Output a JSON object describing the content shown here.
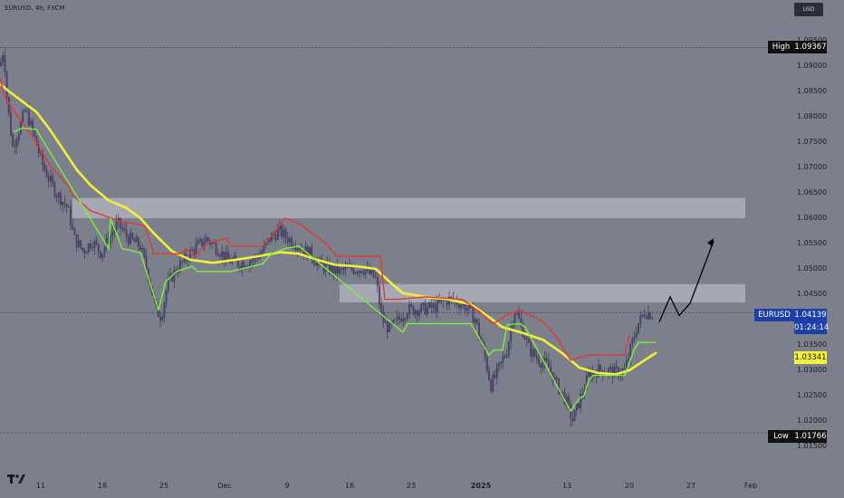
{
  "header": {
    "symbol": "EURUSD, 4h, FXCM",
    "currency": "USD"
  },
  "price_axis": {
    "ticks": [
      "1.09500",
      "1.09000",
      "1.08500",
      "1.08000",
      "1.07500",
      "1.07000",
      "1.06500",
      "1.06000",
      "1.05500",
      "1.05000",
      "1.04500",
      "1.04000",
      "1.03500",
      "1.03000",
      "1.02500",
      "1.02000",
      "1.01500"
    ]
  },
  "time_axis": {
    "ticks": [
      "11",
      "18",
      "25",
      "Dec",
      "9",
      "16",
      "23",
      "2025",
      "13",
      "20",
      "27",
      "Feb"
    ]
  },
  "tags": {
    "high": {
      "label": "High",
      "value": "1.09367"
    },
    "low": {
      "label": "Low",
      "value": "1.01766"
    },
    "current": {
      "label": "EURUSD",
      "value": "1.04139",
      "countdown": "01:24:14"
    },
    "ma": {
      "value": "1.03341"
    }
  },
  "zones": [
    {
      "name": "upper-resistance-zone",
      "from": 1.06,
      "to": 1.064
    },
    {
      "name": "lower-resistance-zone",
      "from": 1.0434,
      "to": 1.047
    }
  ],
  "colors": {
    "background": "#7c7f8c",
    "ma_line": "#f0f039",
    "red_line": "#e03a3a",
    "green_line": "#7ef03c",
    "current_tag": "#1e3fa8",
    "ma_tag": "#f5f23a"
  },
  "chart_data": {
    "type": "candlestick",
    "symbol": "EURUSD",
    "timeframe": "4h",
    "source": "FXCM",
    "ylim": [
      1.0125,
      1.098
    ],
    "high": 1.09367,
    "low": 1.01766,
    "last": 1.04139,
    "moving_average_last": 1.03341,
    "series": [
      {
        "name": "moving-average",
        "color": "#f0f039",
        "points": [
          [
            0,
            1.0865
          ],
          [
            10,
            1.085
          ],
          [
            25,
            1.083
          ],
          [
            40,
            1.081
          ],
          [
            55,
            1.0775
          ],
          [
            70,
            1.0735
          ],
          [
            85,
            1.0695
          ],
          [
            100,
            1.0665
          ],
          [
            120,
            1.0635
          ],
          [
            140,
            1.062
          ],
          [
            155,
            1.06
          ],
          [
            170,
            1.057
          ],
          [
            190,
            1.0535
          ],
          [
            210,
            1.0518
          ],
          [
            235,
            1.0512
          ],
          [
            260,
            1.0518
          ],
          [
            285,
            1.0525
          ],
          [
            310,
            1.0533
          ],
          [
            330,
            1.053
          ],
          [
            350,
            1.0518
          ],
          [
            370,
            1.0508
          ],
          [
            395,
            1.0505
          ],
          [
            415,
            1.05
          ],
          [
            430,
            1.0475
          ],
          [
            445,
            1.0452
          ],
          [
            470,
            1.0445
          ],
          [
            495,
            1.044
          ],
          [
            520,
            1.043
          ],
          [
            540,
            1.0405
          ],
          [
            555,
            1.0385
          ],
          [
            575,
            1.0375
          ],
          [
            600,
            1.036
          ],
          [
            620,
            1.0335
          ],
          [
            640,
            1.0305
          ],
          [
            660,
            1.0295
          ],
          [
            680,
            1.0292
          ],
          [
            695,
            1.03
          ],
          [
            710,
            1.0318
          ],
          [
            725,
            1.0335
          ]
        ]
      },
      {
        "name": "red-stop-line",
        "color": "#e03a3a",
        "points": [
          [
            0,
            1.0878
          ],
          [
            5,
            1.084
          ],
          [
            20,
            1.08
          ],
          [
            40,
            1.075
          ],
          [
            55,
            1.0705
          ],
          [
            75,
            1.0665
          ],
          [
            80,
            1.0645
          ],
          [
            100,
            1.0615
          ],
          [
            130,
            1.0595
          ],
          [
            160,
            1.0585
          ],
          [
            170,
            1.053
          ],
          [
            200,
            1.053
          ],
          [
            205,
            1.054
          ],
          [
            215,
            1.0525
          ],
          [
            230,
            1.0552
          ],
          [
            250,
            1.056
          ],
          [
            255,
            1.0545
          ],
          [
            290,
            1.0545
          ],
          [
            300,
            1.0565
          ],
          [
            315,
            1.06
          ],
          [
            330,
            1.059
          ],
          [
            345,
            1.057
          ],
          [
            360,
            1.055
          ],
          [
            372,
            1.0525
          ],
          [
            420,
            1.0525
          ],
          [
            425,
            1.044
          ],
          [
            440,
            1.044
          ],
          [
            470,
            1.0445
          ],
          [
            510,
            1.044
          ],
          [
            530,
            1.0415
          ],
          [
            545,
            1.0392
          ],
          [
            560,
            1.041
          ],
          [
            575,
            1.0418
          ],
          [
            590,
            1.0405
          ],
          [
            600,
            1.0395
          ],
          [
            615,
            1.0365
          ],
          [
            630,
            1.032
          ],
          [
            650,
            1.033
          ],
          [
            690,
            1.033
          ],
          [
            695,
            1.037
          ]
        ]
      },
      {
        "name": "green-stop-line",
        "color": "#7ef03c",
        "points": [
          [
            15,
            1.077
          ],
          [
            25,
            1.0778
          ],
          [
            40,
            1.0775
          ],
          [
            120,
            1.054
          ],
          [
            122,
            1.06
          ],
          [
            135,
            1.054
          ],
          [
            155,
            1.0532
          ],
          [
            175,
            1.042
          ],
          [
            183,
            1.0475
          ],
          [
            195,
            1.0495
          ],
          [
            212,
            1.0505
          ],
          [
            218,
            1.0495
          ],
          [
            255,
            1.0495
          ],
          [
            290,
            1.051
          ],
          [
            300,
            1.053
          ],
          [
            315,
            1.054
          ],
          [
            330,
            1.0545
          ],
          [
            445,
            1.0375
          ],
          [
            450,
            1.0392
          ],
          [
            520,
            1.0392
          ],
          [
            540,
            1.033
          ],
          [
            545,
            1.034
          ],
          [
            555,
            1.034
          ],
          [
            560,
            1.039
          ],
          [
            575,
            1.0392
          ],
          [
            580,
            1.0385
          ],
          [
            630,
            1.022
          ],
          [
            640,
            1.0245
          ],
          [
            645,
            1.025
          ],
          [
            650,
            1.028
          ],
          [
            655,
            1.029
          ],
          [
            690,
            1.029
          ],
          [
            700,
            1.034
          ],
          [
            705,
            1.0355
          ],
          [
            724,
            1.0355
          ]
        ]
      }
    ],
    "projection": [
      [
        728,
        1.0395
      ],
      [
        740,
        1.0445
      ],
      [
        750,
        1.0408
      ],
      [
        762,
        1.0432
      ],
      [
        788,
        1.0555
      ]
    ]
  }
}
